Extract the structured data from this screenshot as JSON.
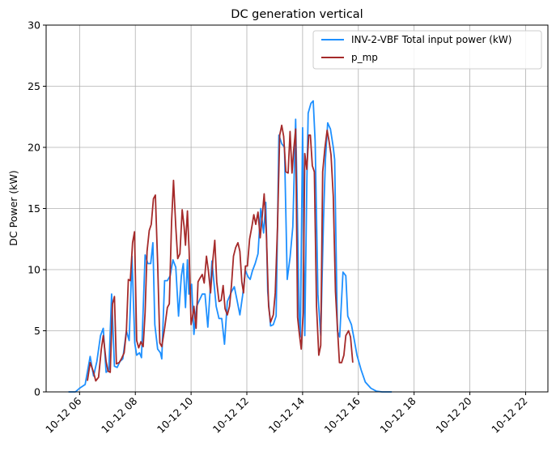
{
  "chart_data": {
    "type": "line",
    "title": "DC generation vertical",
    "xlabel": "",
    "ylabel": "DC Power (kW)",
    "ylim": [
      0,
      30
    ],
    "xlim_hours": [
      4.8,
      22.8
    ],
    "yticks": [
      0,
      5,
      10,
      15,
      20,
      25,
      30
    ],
    "xticks": [
      {
        "hour": 6,
        "label": "10-12 06"
      },
      {
        "hour": 8,
        "label": "10-12 08"
      },
      {
        "hour": 10,
        "label": "10-12 10"
      },
      {
        "hour": 12,
        "label": "10-12 12"
      },
      {
        "hour": 14,
        "label": "10-12 14"
      },
      {
        "hour": 16,
        "label": "10-12 16"
      },
      {
        "hour": 18,
        "label": "10-12 18"
      },
      {
        "hour": 20,
        "label": "10-12 20"
      },
      {
        "hour": 22,
        "label": "10-12 22"
      }
    ],
    "grid": true,
    "legend_position": "top-right",
    "series": [
      {
        "name": "INV-2-VBF Total input power (kW)",
        "color": "#1e90ff",
        "points": [
          [
            5.6,
            0
          ],
          [
            5.85,
            0
          ],
          [
            6.0,
            0.3
          ],
          [
            6.2,
            0.6
          ],
          [
            6.38,
            2.9
          ],
          [
            6.5,
            1.3
          ],
          [
            6.62,
            2.5
          ],
          [
            6.75,
            4.6
          ],
          [
            6.85,
            5.2
          ],
          [
            6.95,
            1.6
          ],
          [
            7.05,
            1.8
          ],
          [
            7.15,
            8.0
          ],
          [
            7.25,
            2.1
          ],
          [
            7.35,
            2.0
          ],
          [
            7.45,
            2.5
          ],
          [
            7.55,
            2.7
          ],
          [
            7.68,
            5.0
          ],
          [
            7.78,
            4.2
          ],
          [
            7.88,
            11.1
          ],
          [
            7.98,
            4.0
          ],
          [
            8.05,
            3.0
          ],
          [
            8.15,
            3.2
          ],
          [
            8.22,
            2.8
          ],
          [
            8.35,
            11.2
          ],
          [
            8.45,
            10.5
          ],
          [
            8.55,
            10.5
          ],
          [
            8.63,
            12.2
          ],
          [
            8.7,
            5.5
          ],
          [
            8.8,
            3.5
          ],
          [
            8.9,
            3.2
          ],
          [
            8.95,
            2.7
          ],
          [
            9.05,
            9.1
          ],
          [
            9.15,
            9.1
          ],
          [
            9.25,
            9.5
          ],
          [
            9.35,
            10.8
          ],
          [
            9.45,
            10.2
          ],
          [
            9.55,
            6.2
          ],
          [
            9.65,
            9.5
          ],
          [
            9.72,
            10.5
          ],
          [
            9.8,
            6.9
          ],
          [
            9.87,
            10.8
          ],
          [
            9.92,
            8.0
          ],
          [
            10.02,
            8.8
          ],
          [
            10.1,
            4.7
          ],
          [
            10.2,
            7.0
          ],
          [
            10.3,
            7.5
          ],
          [
            10.4,
            8.0
          ],
          [
            10.5,
            8.0
          ],
          [
            10.6,
            5.3
          ],
          [
            10.75,
            10.7
          ],
          [
            10.9,
            7.0
          ],
          [
            11.0,
            6.0
          ],
          [
            11.1,
            6.0
          ],
          [
            11.2,
            3.9
          ],
          [
            11.3,
            7.4
          ],
          [
            11.45,
            8.2
          ],
          [
            11.55,
            8.6
          ],
          [
            11.65,
            7.5
          ],
          [
            11.75,
            6.3
          ],
          [
            11.85,
            7.9
          ],
          [
            11.95,
            9.9
          ],
          [
            12.05,
            9.4
          ],
          [
            12.12,
            9.2
          ],
          [
            12.2,
            9.9
          ],
          [
            12.3,
            10.5
          ],
          [
            12.4,
            11.3
          ],
          [
            12.5,
            15.0
          ],
          [
            12.6,
            13.0
          ],
          [
            12.68,
            15.5
          ],
          [
            12.75,
            8.2
          ],
          [
            12.85,
            5.4
          ],
          [
            12.95,
            5.5
          ],
          [
            13.05,
            6.2
          ],
          [
            13.15,
            21.0
          ],
          [
            13.25,
            20.3
          ],
          [
            13.35,
            20.0
          ],
          [
            13.45,
            9.2
          ],
          [
            13.55,
            11.0
          ],
          [
            13.65,
            13.5
          ],
          [
            13.75,
            22.3
          ],
          [
            13.8,
            16.5
          ],
          [
            13.88,
            5.5
          ],
          [
            13.92,
            4.5
          ],
          [
            14.0,
            21.6
          ],
          [
            14.08,
            4.6
          ],
          [
            14.15,
            17.0
          ],
          [
            14.2,
            22.8
          ],
          [
            14.3,
            23.6
          ],
          [
            14.38,
            23.8
          ],
          [
            14.45,
            20.5
          ],
          [
            14.55,
            8.0
          ],
          [
            14.65,
            4.6
          ],
          [
            14.75,
            14.0
          ],
          [
            14.82,
            19.0
          ],
          [
            14.9,
            22.0
          ],
          [
            15.0,
            21.5
          ],
          [
            15.1,
            20.0
          ],
          [
            15.15,
            19.0
          ],
          [
            15.25,
            5.0
          ],
          [
            15.33,
            4.5
          ],
          [
            15.45,
            9.8
          ],
          [
            15.55,
            9.5
          ],
          [
            15.62,
            6.2
          ],
          [
            15.75,
            5.5
          ],
          [
            15.85,
            4.3
          ],
          [
            15.95,
            3.0
          ],
          [
            16.1,
            1.8
          ],
          [
            16.25,
            0.8
          ],
          [
            16.45,
            0.3
          ],
          [
            16.65,
            0.05
          ],
          [
            16.85,
            0
          ],
          [
            17.2,
            0
          ]
        ]
      },
      {
        "name": "p_mp",
        "color": "#a52a2a",
        "points": [
          [
            6.28,
            0.9
          ],
          [
            6.38,
            2.4
          ],
          [
            6.5,
            1.6
          ],
          [
            6.58,
            0.9
          ],
          [
            6.68,
            1.2
          ],
          [
            6.78,
            3.5
          ],
          [
            6.85,
            4.6
          ],
          [
            6.95,
            2.5
          ],
          [
            7.02,
            1.7
          ],
          [
            7.1,
            1.6
          ],
          [
            7.18,
            7.2
          ],
          [
            7.25,
            7.8
          ],
          [
            7.32,
            2.3
          ],
          [
            7.42,
            2.4
          ],
          [
            7.5,
            2.7
          ],
          [
            7.6,
            3.2
          ],
          [
            7.68,
            5.0
          ],
          [
            7.75,
            9.2
          ],
          [
            7.82,
            9.1
          ],
          [
            7.9,
            12.2
          ],
          [
            7.97,
            13.1
          ],
          [
            8.05,
            4.2
          ],
          [
            8.12,
            3.6
          ],
          [
            8.2,
            4.1
          ],
          [
            8.28,
            3.7
          ],
          [
            8.35,
            6.5
          ],
          [
            8.42,
            11.5
          ],
          [
            8.5,
            13.2
          ],
          [
            8.57,
            13.7
          ],
          [
            8.65,
            15.8
          ],
          [
            8.72,
            16.1
          ],
          [
            8.8,
            10.5
          ],
          [
            8.88,
            4.0
          ],
          [
            8.95,
            3.7
          ],
          [
            9.05,
            5.2
          ],
          [
            9.15,
            6.9
          ],
          [
            9.22,
            7.2
          ],
          [
            9.3,
            13.9
          ],
          [
            9.37,
            17.3
          ],
          [
            9.45,
            13.5
          ],
          [
            9.52,
            10.9
          ],
          [
            9.6,
            11.3
          ],
          [
            9.68,
            14.9
          ],
          [
            9.75,
            13.5
          ],
          [
            9.8,
            12.0
          ],
          [
            9.87,
            14.8
          ],
          [
            9.93,
            11.5
          ],
          [
            10.0,
            5.5
          ],
          [
            10.05,
            6.1
          ],
          [
            10.1,
            7.0
          ],
          [
            10.18,
            5.2
          ],
          [
            10.25,
            9.0
          ],
          [
            10.32,
            9.3
          ],
          [
            10.4,
            9.6
          ],
          [
            10.47,
            8.9
          ],
          [
            10.55,
            11.1
          ],
          [
            10.62,
            9.9
          ],
          [
            10.7,
            8.1
          ],
          [
            10.78,
            10.8
          ],
          [
            10.85,
            12.4
          ],
          [
            10.92,
            9.0
          ],
          [
            11.0,
            7.4
          ],
          [
            11.08,
            7.5
          ],
          [
            11.15,
            8.7
          ],
          [
            11.22,
            6.8
          ],
          [
            11.3,
            6.3
          ],
          [
            11.38,
            7.0
          ],
          [
            11.45,
            8.8
          ],
          [
            11.52,
            11.1
          ],
          [
            11.6,
            11.8
          ],
          [
            11.68,
            12.2
          ],
          [
            11.75,
            11.5
          ],
          [
            11.82,
            9.0
          ],
          [
            11.88,
            8.1
          ],
          [
            11.95,
            10.3
          ],
          [
            12.02,
            10.3
          ],
          [
            12.1,
            12.5
          ],
          [
            12.18,
            13.5
          ],
          [
            12.25,
            14.5
          ],
          [
            12.32,
            13.7
          ],
          [
            12.4,
            14.7
          ],
          [
            12.48,
            12.6
          ],
          [
            12.55,
            14.3
          ],
          [
            12.62,
            16.2
          ],
          [
            12.7,
            13.0
          ],
          [
            12.78,
            7.0
          ],
          [
            12.85,
            5.7
          ],
          [
            12.95,
            6.3
          ],
          [
            13.02,
            8.1
          ],
          [
            13.1,
            13.5
          ],
          [
            13.18,
            21.0
          ],
          [
            13.25,
            21.8
          ],
          [
            13.32,
            20.9
          ],
          [
            13.4,
            18.0
          ],
          [
            13.48,
            17.9
          ],
          [
            13.55,
            21.3
          ],
          [
            13.62,
            17.9
          ],
          [
            13.68,
            19.8
          ],
          [
            13.75,
            21.5
          ],
          [
            13.82,
            6.1
          ],
          [
            13.88,
            4.8
          ],
          [
            13.95,
            3.5
          ],
          [
            14.02,
            6.5
          ],
          [
            14.08,
            19.5
          ],
          [
            14.15,
            18.2
          ],
          [
            14.22,
            21.0
          ],
          [
            14.28,
            21.0
          ],
          [
            14.35,
            18.5
          ],
          [
            14.42,
            18.0
          ],
          [
            14.5,
            7.0
          ],
          [
            14.58,
            3.0
          ],
          [
            14.65,
            3.8
          ],
          [
            14.72,
            18.0
          ],
          [
            14.8,
            19.9
          ],
          [
            14.88,
            21.4
          ],
          [
            14.95,
            20.5
          ],
          [
            15.02,
            19.4
          ],
          [
            15.1,
            16.0
          ],
          [
            15.18,
            8.2
          ],
          [
            15.25,
            5.3
          ],
          [
            15.32,
            2.4
          ],
          [
            15.4,
            2.4
          ],
          [
            15.48,
            3.0
          ],
          [
            15.55,
            4.6
          ],
          [
            15.65,
            5.0
          ],
          [
            15.72,
            4.5
          ],
          [
            15.8,
            2.4
          ]
        ]
      }
    ]
  }
}
